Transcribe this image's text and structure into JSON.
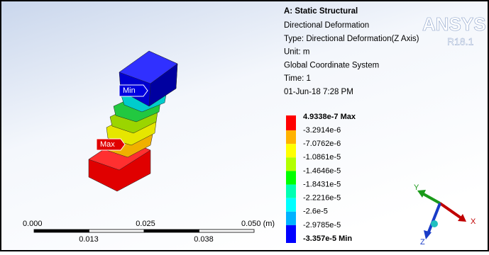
{
  "header": {
    "title": "A: Static Structural",
    "lines": [
      "Directional Deformation",
      "Type: Directional Deformation(Z Axis)",
      "Unit: m",
      "Global Coordinate System",
      "Time: 1",
      "01-Jun-18 7:28 PM"
    ]
  },
  "logo": {
    "name": "ANSYS",
    "version": "R18.1"
  },
  "legend": {
    "labels": [
      "4.9338e-7 Max",
      "-3.2914e-6",
      "-7.0762e-6",
      "-1.0861e-5",
      "-1.4646e-5",
      "-1.8431e-5",
      "-2.2216e-5",
      "-2.6e-5",
      "-2.9785e-5",
      "-3.357e-5 Min"
    ]
  },
  "tags": {
    "min": "Min",
    "max": "Max"
  },
  "scale_bar": {
    "top_labels": [
      "0.000",
      "0.025",
      "0.050 (m)"
    ],
    "bottom_labels": [
      "0.013",
      "0.038"
    ]
  },
  "triad": {
    "x": "X",
    "y": "Y",
    "z": "Z"
  }
}
